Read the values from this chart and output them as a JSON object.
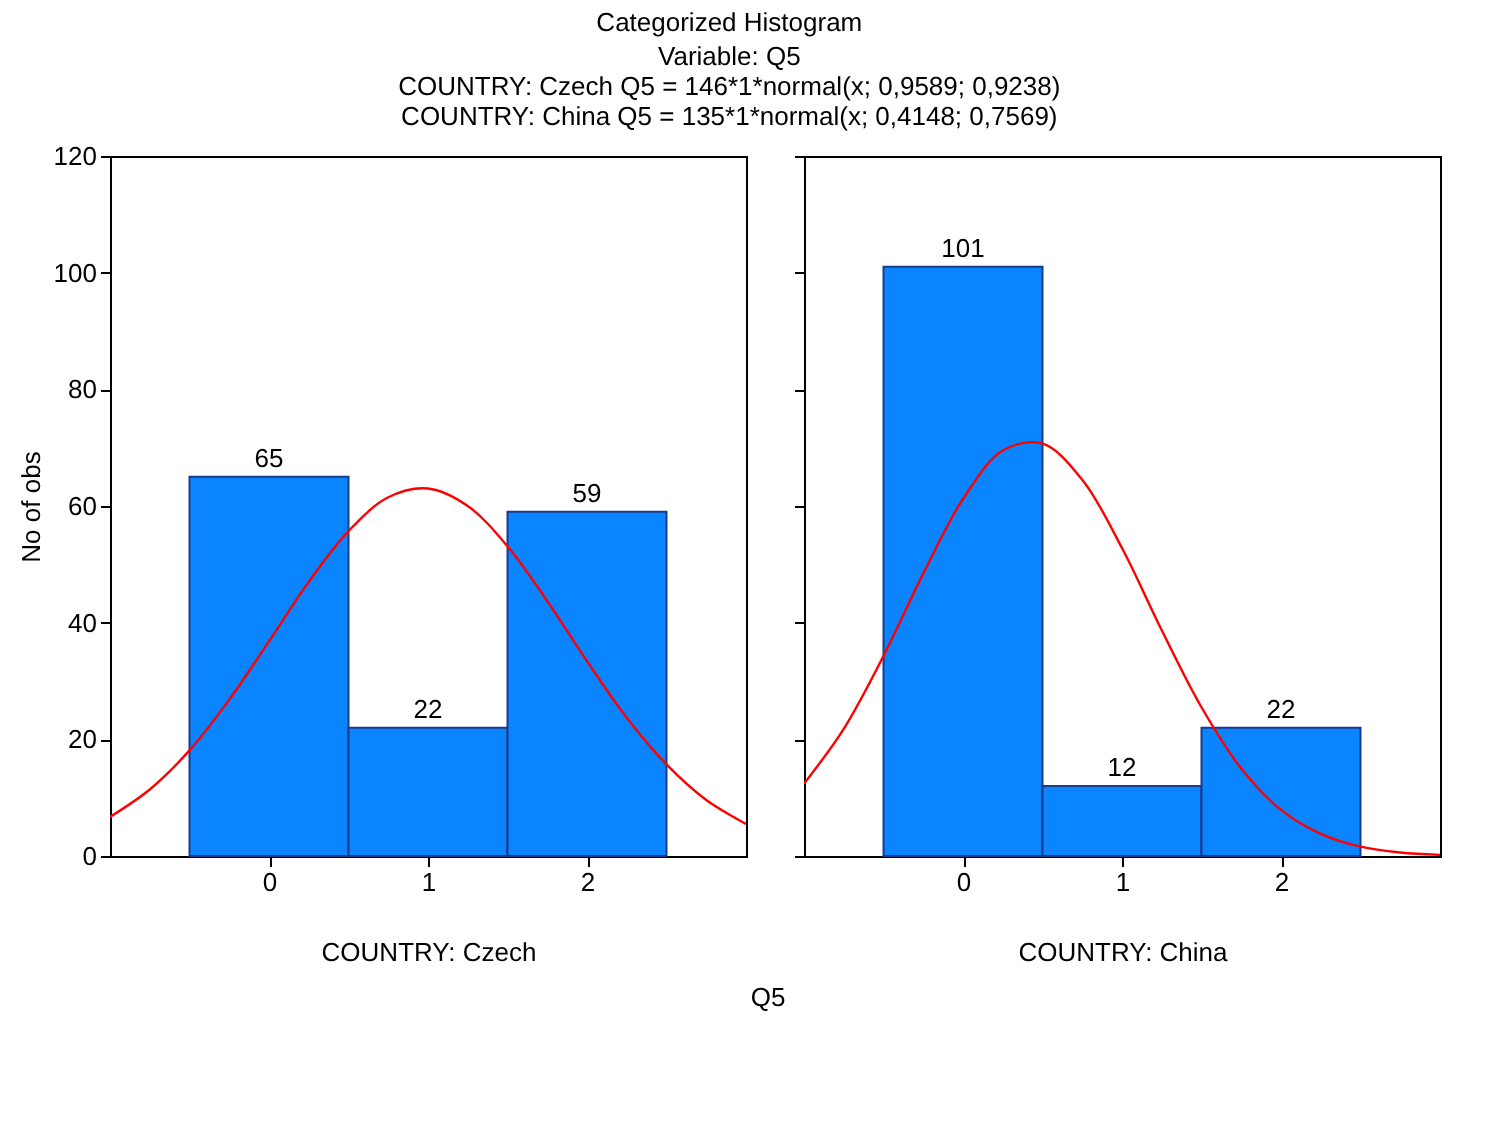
{
  "chart_data": [
    {
      "type": "histogram",
      "title": "Categorized Histogram",
      "subtitle": "Variable: Q5\nCOUNTRY: Czech Q5  = 146*1*normal(x; 0,9589; 0,9238)\nCOUNTRY: China Q5  = 135*1*normal(x; 0,4148; 0,7569)",
      "annotations": [
        "Q5"
      ],
      "xlabel": "COUNTRY: Czech",
      "ylabel": "No of obs",
      "bins": [
        -0.5,
        0.5,
        1.5,
        2.5
      ],
      "values": [
        65,
        22,
        59
      ],
      "value_labels": [
        "65",
        "22",
        "59"
      ],
      "color": "#0a84ff",
      "xlim": [
        -1,
        3
      ],
      "xticks": [
        0,
        1,
        2
      ],
      "ylim": [
        0,
        120
      ],
      "yticks": [
        0,
        20,
        40,
        60,
        80,
        100,
        120
      ],
      "series": [
        {
          "type": "line",
          "color": "#ff0000",
          "x": [
            -1,
            -0.75,
            -0.5,
            -0.25,
            0,
            0.25,
            0.5,
            0.75,
            1,
            1.25,
            1.5,
            1.75,
            2,
            2.25,
            2.5,
            2.75,
            3
          ],
          "values": [
            6.7,
            11.4,
            18.1,
            26.8,
            36.8,
            47.0,
            55.7,
            61.5,
            63.0,
            60.0,
            53.1,
            43.7,
            33.4,
            23.7,
            15.7,
            9.6,
            5.5
          ]
        }
      ]
    },
    {
      "type": "histogram",
      "xlabel": "COUNTRY: China",
      "bins": [
        -0.5,
        0.5,
        1.5,
        2.5
      ],
      "values": [
        101,
        12,
        22
      ],
      "value_labels": [
        "101",
        "12",
        "22"
      ],
      "color": "#0a84ff",
      "xlim": [
        -1,
        3
      ],
      "xticks": [
        0,
        1,
        2
      ],
      "ylim": [
        0,
        120
      ],
      "yticks": [
        0,
        20,
        40,
        60,
        80,
        100,
        120
      ],
      "tick_labels": "x",
      "series": [
        {
          "type": "line",
          "color": "#ff0000",
          "x": [
            -1,
            -0.75,
            -0.5,
            -0.25,
            0,
            0.25,
            0.5,
            0.75,
            1,
            1.25,
            1.5,
            1.75,
            2,
            2.25,
            2.5,
            2.75,
            3
          ],
          "values": [
            12.4,
            21.8,
            34.3,
            48.4,
            61.2,
            69.5,
            70.7,
            64.5,
            52.8,
            38.7,
            25.5,
            15.0,
            7.9,
            3.8,
            1.6,
            0.6,
            0.2
          ]
        }
      ]
    }
  ]
}
